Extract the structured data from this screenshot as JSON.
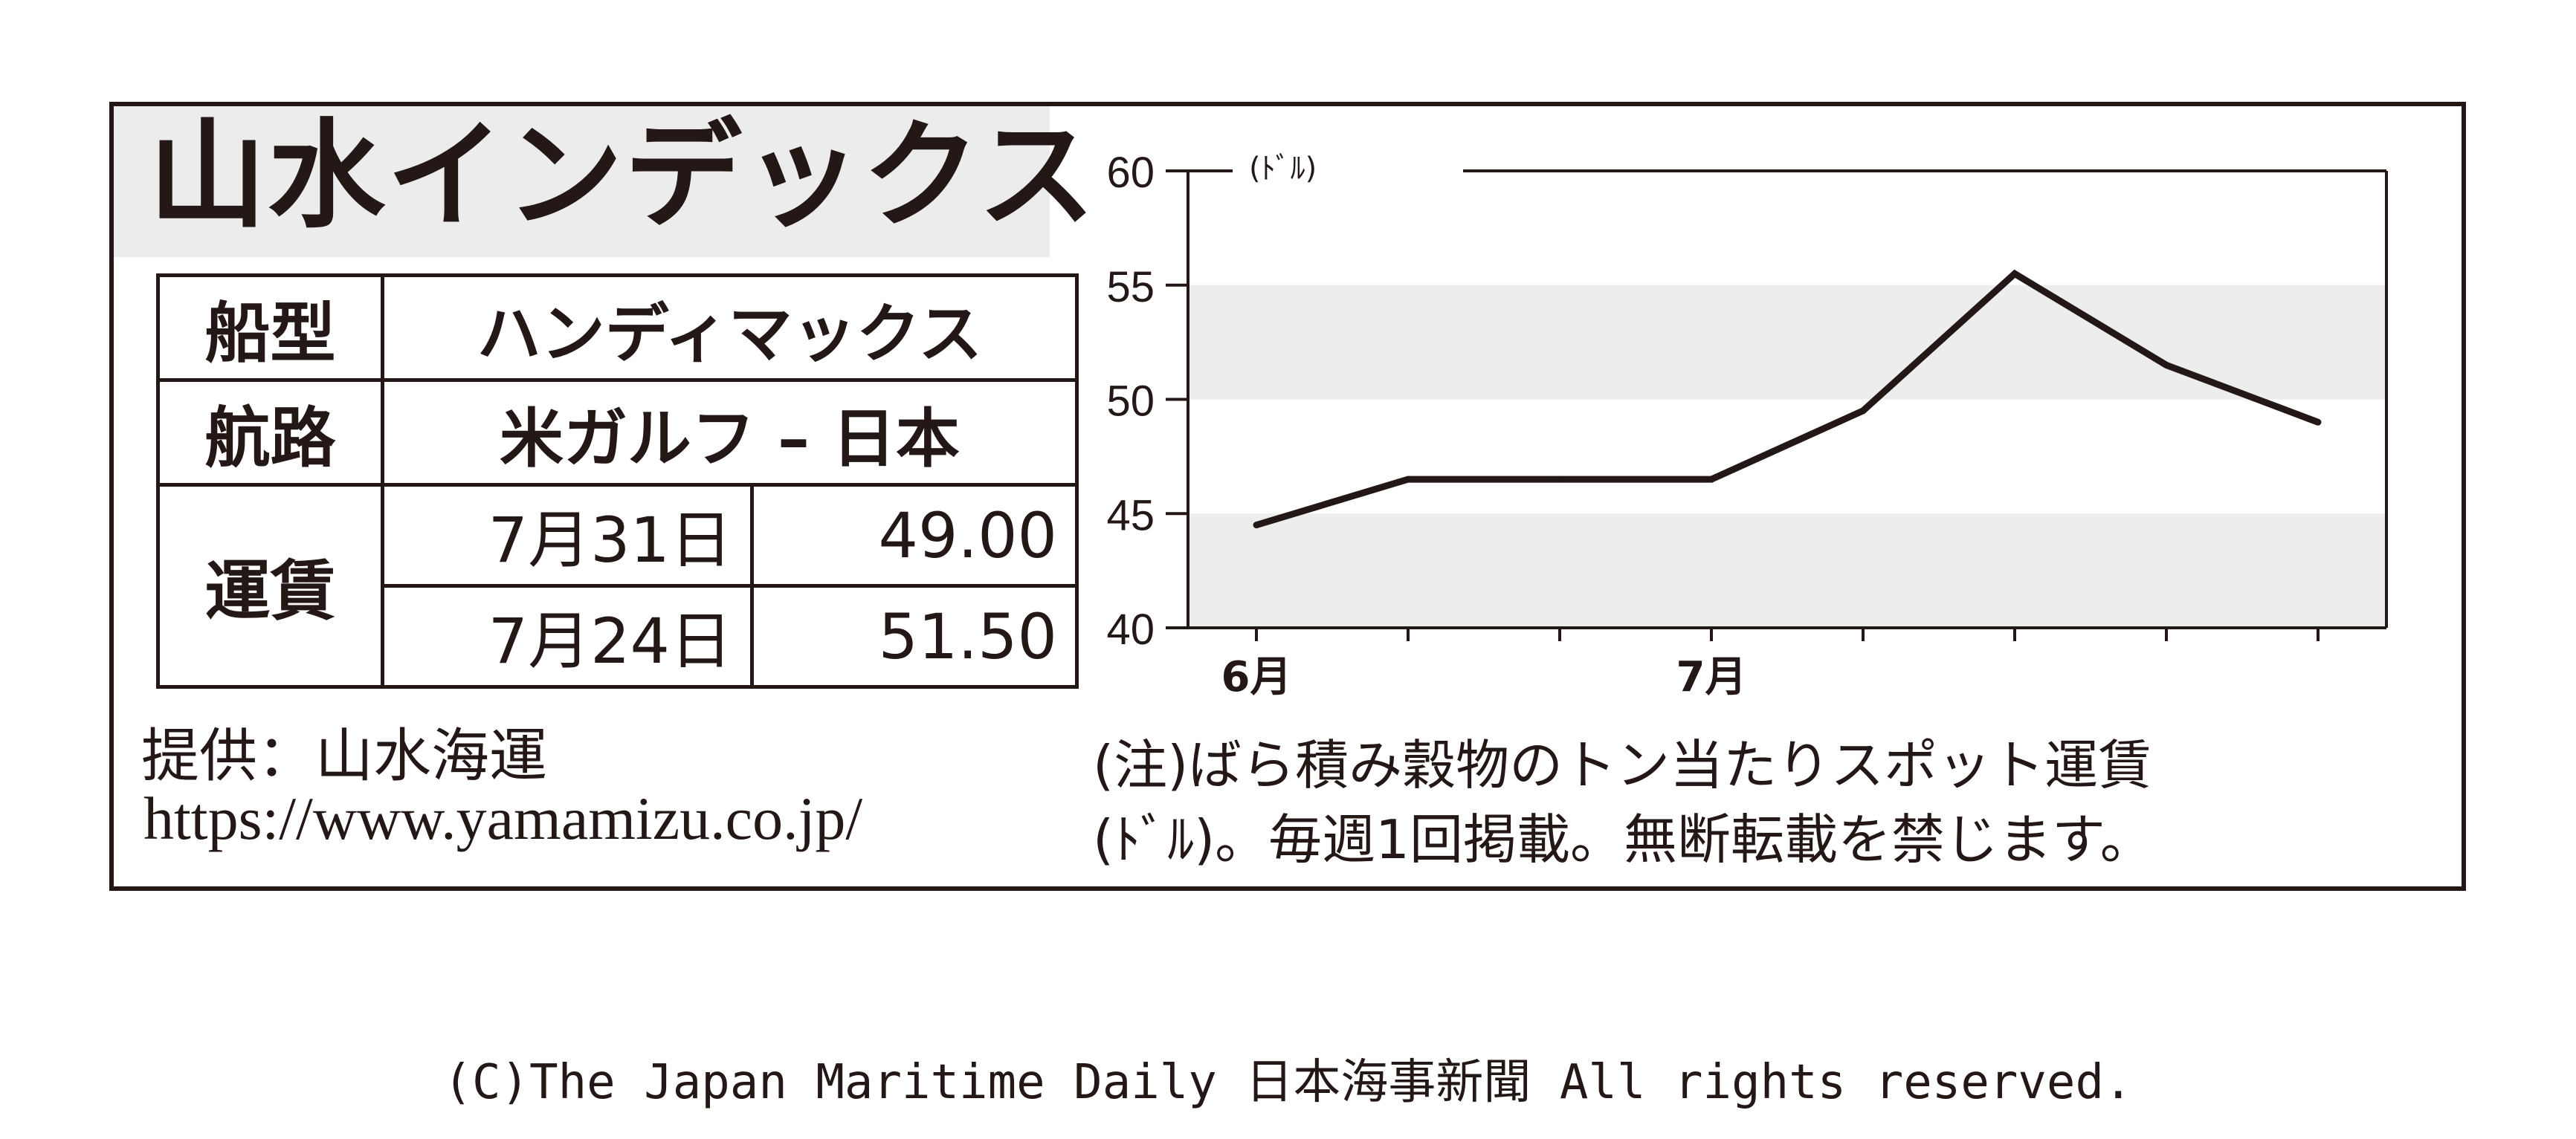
{
  "title": "山水インデックス",
  "table": {
    "ship_type_label": "船型",
    "ship_type_value": "ハンディマックス",
    "route_label": "航路",
    "route_value": "米ガルフ – 日本",
    "freight_label": "運賃",
    "rows": [
      {
        "date": "7月31日",
        "value": "49.00"
      },
      {
        "date": "7月24日",
        "value": "51.50"
      }
    ]
  },
  "provider": "提供：山水海運",
  "url": "https://www.yamamizu.co.jp/",
  "note": {
    "line1": "(注)ばら積み穀物のトン当たりスポット運賃",
    "line2": "(ﾄﾞﾙ)。毎週1回掲載。無断転載を禁じます。"
  },
  "copyright": "(C)The Japan Maritime Daily 日本海事新聞 All rights reserved.",
  "chart_data": {
    "type": "line",
    "ylabel": "(ﾄﾞﾙ)",
    "ylim": [
      40,
      60
    ],
    "yticks": [
      "40",
      "45",
      "50",
      "55",
      "60"
    ],
    "x_tick_count": 8,
    "x_labels": [
      {
        "label": "6月",
        "tick": 0
      },
      {
        "label": "7月",
        "tick": 3
      }
    ],
    "bands": [
      [
        40,
        45
      ],
      [
        50,
        55
      ]
    ],
    "band_color": "#ededed",
    "line_color": "#231815",
    "values": [
      44.5,
      46.5,
      46.5,
      46.5,
      49.5,
      55.5,
      51.5,
      49.0
    ]
  }
}
